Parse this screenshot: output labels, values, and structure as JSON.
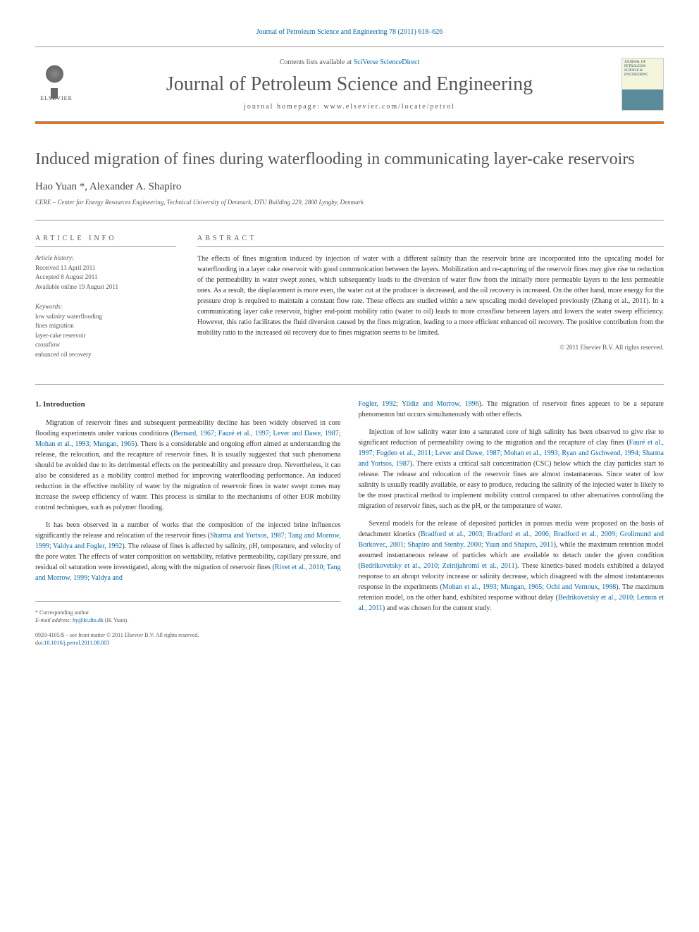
{
  "top_citation": "Journal of Petroleum Science and Engineering 78 (2011) 618–626",
  "header": {
    "contents_prefix": "Contents lists available at ",
    "contents_link": "SciVerse ScienceDirect",
    "journal_title": "Journal of Petroleum Science and Engineering",
    "homepage_label": "journal homepage: www.elsevier.com/locate/petrol",
    "publisher": "ELSEVIER",
    "cover_text": "JOURNAL OF PETROLEUM SCIENCE & ENGINEERING"
  },
  "article": {
    "title": "Induced migration of fines during waterflooding in communicating layer-cake reservoirs",
    "authors": "Hao Yuan *, Alexander A. Shapiro",
    "affiliation": "CERE – Center for Energy Resources Engineering, Technical University of Denmark, DTU Building 229, 2800 Lyngby, Denmark"
  },
  "article_info": {
    "heading": "ARTICLE INFO",
    "history_label": "Article history:",
    "received": "Received 13 April 2011",
    "accepted": "Accepted 8 August 2011",
    "online": "Available online 19 August 2011",
    "keywords_label": "Keywords:",
    "keywords": [
      "low salinity waterflooding",
      "fines migration",
      "layer-cake reservoir",
      "crossflow",
      "enhanced oil recovery"
    ]
  },
  "abstract": {
    "heading": "ABSTRACT",
    "text": "The effects of fines migration induced by injection of water with a different salinity than the reservoir brine are incorporated into the upscaling model for waterflooding in a layer cake reservoir with good communication between the layers. Mobilization and re-capturing of the reservoir fines may give rise to reduction of the permeability in water swept zones, which subsequently leads to the diversion of water flow from the initially more permeable layers to the less permeable ones. As a result, the displacement is more even, the water cut at the producer is decreased, and the oil recovery is increased. On the other hand, more energy for the pressure drop is required to maintain a constant flow rate. These effects are studied within a new upscaling model developed previously (Zhang et al., 2011). In a communicating layer cake reservoir, higher end-point mobility ratio (water to oil) leads to more crossflow between layers and lowers the water sweep efficiency. However, this ratio facilitates the fluid diversion caused by the fines migration, leading to a more efficient enhanced oil recovery. The positive contribution from the mobility ratio to the increased oil recovery due to fines migration seems to be limited.",
    "copyright": "© 2011 Elsevier B.V. All rights reserved."
  },
  "body": {
    "intro_heading": "1. Introduction",
    "col1_p1_a": "Migration of reservoir fines and subsequent permeability decline has been widely observed in core flooding experiments under various conditions (",
    "col1_p1_ref1": "Bernard, 1967; Fauré et al., 1997; Lever and Dawe, 1987; Mohan et al., 1993; Mungan, 1965",
    "col1_p1_b": "). There is a considerable and ongoing effort aimed at understanding the release, the relocation, and the recapture of reservoir fines. It is usually suggested that such phenomena should be avoided due to its detrimental effects on the permeability and pressure drop. Nevertheless, it can also be considered as a mobility control method for improving waterflooding performance. An induced reduction in the effective mobility of water by the migration of reservoir fines in water swept zones may increase the sweep efficiency of water. This process is similar to the mechanisms of other EOR mobility control techniques, such as polymer flooding.",
    "col1_p2_a": "It has been observed in a number of works that the composition of the injected brine influences significantly the release and relocation of the reservoir fines (",
    "col1_p2_ref1": "Sharma and Yortsos, 1987; Tang and Morrow, 1999; Valdya and Fogler, 1992",
    "col1_p2_b": "). The release of fines is affected by salinity, pH, temperature, and velocity of the pore water. The effects of water composition on wettability, relative permeability, capillary pressure, and residual oil saturation were investigated, along with the migration of reservoir fines (",
    "col1_p2_ref2": "Rivet et al., 2010; Tang and Morrow, 1999; Valdya and",
    "col2_p1_ref1": "Fogler, 1992; Yildiz and Morrow, 1996",
    "col2_p1_a": "). The migration of reservoir fines appears to be a separate phenomenon but occurs simultaneously with other effects.",
    "col2_p2_a": "Injection of low salinity water into a saturated core of high salinity has been observed to give rise to significant reduction of permeability owing to the migration and the recapture of clay fines (",
    "col2_p2_ref1": "Fauré et al., 1997; Fogden et al., 2011; Lever and Dawe, 1987; Mohan et al., 1993; Ryan and Gschwend, 1994; Sharma and Yortsos, 1987",
    "col2_p2_b": "). There exists a critical salt concentration (CSC) below which the clay particles start to release. The release and relocation of the reservoir fines are almost instantaneous. Since water of low salinity is usually readily available, or easy to produce, reducing the salinity of the injected water is likely to be the most practical method to implement mobility control compared to other alternatives controlling the migration of reservoir fines, such as the pH, or the temperature of water.",
    "col2_p3_a": "Several models for the release of deposited particles in porous media were proposed on the basis of detachment kinetics (",
    "col2_p3_ref1": "Bradford et al., 2003; Bradford et al., 2006; Bradford et al., 2009; Grolimund and Borkovec, 2001; Shapiro and Stenby, 2000; Yuan and Shapiro, 2011",
    "col2_p3_b": "), while the maximum retention model assumed instantaneous release of particles which are available to detach under the given condition (",
    "col2_p3_ref2": "Bedrikovetsky et al., 2010; Zeinijahromi et al., 2011",
    "col2_p3_c": "). These kinetics-based models exhibited a delayed response to an abrupt velocity increase or salinity decrease, which disagreed with the almost instantaneous response in the experiments (",
    "col2_p3_ref3": "Mohan et al., 1993; Mungan, 1965; Ochi and Vernoux, 1998",
    "col2_p3_d": "). The maximum retention model, on the other hand, exhibited response without delay (",
    "col2_p3_ref4": "Bedrikovetsky et al., 2010; Lemon et al., 2011",
    "col2_p3_e": ") and was chosen for the current study."
  },
  "footer": {
    "corresponding_label": "* Corresponding author.",
    "email_label": "E-mail address: ",
    "email": "hy@kt.dtu.dk",
    "email_suffix": " (H. Yuan).",
    "copyright_line1": "0920-4105/$ – see front matter © 2011 Elsevier B.V. All rights reserved.",
    "doi_prefix": "doi:",
    "doi": "10.1016/j.petrol.2011.08.003"
  },
  "colors": {
    "accent_orange": "#e8751a",
    "link_blue": "#0066aa",
    "text_gray": "#555555",
    "border_gray": "#999999"
  }
}
